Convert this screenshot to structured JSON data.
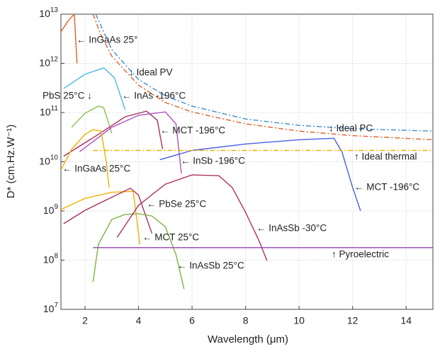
{
  "chart_data": {
    "type": "line",
    "xlabel": "Wavelength (μm)",
    "ylabel": "D* (cm.Hz.W⁻¹)",
    "xlim": [
      1.1,
      15
    ],
    "xticks": [
      2,
      4,
      6,
      8,
      10,
      12,
      14
    ],
    "ylim": [
      10000000.0,
      10000000000000.0
    ],
    "yscale": "log",
    "yticks": [
      {
        "value": 10000000.0,
        "label": "10^7"
      },
      {
        "value": 100000000.0,
        "label": "10^8"
      },
      {
        "value": 1000000000.0,
        "label": "10^9"
      },
      {
        "value": 10000000000.0,
        "label": "10^10"
      },
      {
        "value": 100000000000.0,
        "label": "10^11"
      },
      {
        "value": 1000000000000.0,
        "label": "10^12"
      },
      {
        "value": 10000000000000.0,
        "label": "10^13"
      }
    ],
    "grid": true,
    "series": [
      {
        "color": "#e0602a",
        "style": "solid",
        "x": [
          1.1,
          1.4,
          1.6,
          1.7
        ],
        "values": [
          4400000000000.0,
          7700000000000.0,
          10000000000000.0,
          1000000000000.0
        ]
      },
      {
        "color": "#4db8e8",
        "style": "solid",
        "x": [
          1.2,
          2,
          2.7,
          3.1,
          3.5
        ],
        "values": [
          310000000000.0,
          600000000000.0,
          810000000000.0,
          510000000000.0,
          114000000000.0
        ]
      },
      {
        "color": "#8bc34a",
        "style": "solid",
        "x": [
          1.5,
          2,
          2.5,
          2.7,
          3
        ],
        "values": [
          50000000000.0,
          97000000000.0,
          135000000000.0,
          126000000000.0,
          38000000000.0
        ]
      },
      {
        "color": "#a8305e",
        "style": "solid",
        "x": [
          1.2,
          2.5,
          3.5,
          4.3,
          4.7,
          4.9
        ],
        "values": [
          13000000000.0,
          36000000000.0,
          82000000000.0,
          107000000000.0,
          70000000000.0,
          18000000000.0
        ]
      },
      {
        "color": "#b050c0",
        "style": "solid",
        "x": [
          1.8,
          3,
          4,
          5,
          5.4,
          5.6
        ],
        "values": [
          16000000000.0,
          50000000000.0,
          88000000000.0,
          103000000000.0,
          59000000000.0,
          5800000000.0
        ]
      },
      {
        "color": "#f0b000",
        "style": "solid",
        "x": [
          1.1,
          1.5,
          2,
          2.3,
          2.6,
          2.8,
          2.9
        ],
        "values": [
          6800000000.0,
          18000000000.0,
          36000000000.0,
          45000000000.0,
          42000000000.0,
          9500000000.0,
          3000000000.0
        ]
      },
      {
        "color": "#f0b000",
        "style": "solid",
        "x": [
          1.1,
          2,
          3,
          3.8,
          3.9,
          4.05
        ],
        "values": [
          1070000000.0,
          1800000000.0,
          2400000000.0,
          2500000000.0,
          940000000.0,
          210000000.0
        ]
      },
      {
        "color": "#a8305e",
        "style": "solid",
        "x": [
          1.2,
          2,
          3,
          3.7,
          4,
          4.5
        ],
        "values": [
          550000000.0,
          1030000000.0,
          1900000000.0,
          2900000000.0,
          2100000000.0,
          350000000.0
        ]
      },
      {
        "color": "#7cb342",
        "style": "solid",
        "x": [
          2.3,
          2.5,
          3,
          3.5,
          4,
          4.5,
          5,
          5.4,
          5.7
        ],
        "values": [
          36000000.0,
          210000000.0,
          670000000.0,
          850000000.0,
          880000000.0,
          790000000.0,
          480000000.0,
          130000000.0,
          26000000.0
        ]
      },
      {
        "color": "#b03060",
        "style": "solid",
        "x": [
          3.2,
          4,
          5,
          6,
          7,
          7.5,
          8,
          8.5,
          8.8
        ],
        "values": [
          290000000.0,
          1300000000.0,
          3500000000.0,
          5400000000.0,
          5200000000.0,
          3000000000.0,
          940000000.0,
          250000000.0,
          98000000.0
        ]
      },
      {
        "color": "#4a5ee0",
        "style": "solid",
        "x": [
          4.8,
          6,
          8,
          10,
          11.3,
          11.6,
          12,
          12.3
        ],
        "values": [
          11000000000.0,
          17000000000.0,
          23000000000.0,
          28000000000.0,
          30000000000.0,
          16000000000.0,
          3000000000.0,
          1000000000.0
        ]
      },
      {
        "color": "#e0602a",
        "style": "dashdot",
        "x": [
          2.3,
          2.6,
          3,
          4,
          5,
          6,
          8,
          10,
          12,
          15
        ],
        "values": [
          10000000000000.0,
          3700000000000.0,
          1400000000000.0,
          360000000000.0,
          160000000000.0,
          103000000000.0,
          59000000000.0,
          42000000000.0,
          34000000000.0,
          28000000000.0
        ]
      },
      {
        "color": "#3c8fd0",
        "style": "dashdot",
        "x": [
          2.4,
          3,
          4,
          5,
          6,
          8,
          10,
          12,
          15
        ],
        "values": [
          10000000000000.0,
          1900000000000.0,
          470000000000.0,
          220000000000.0,
          135000000000.0,
          74000000000.0,
          55000000000.0,
          47000000000.0,
          42000000000.0
        ]
      },
      {
        "color": "#f0b000",
        "style": "dashdot",
        "x": [
          2.3,
          15
        ],
        "values": [
          17000000000.0,
          17000000000.0
        ]
      },
      {
        "color": "#9040b0",
        "style": "solid",
        "x": [
          2.3,
          15
        ],
        "values": [
          180000000.0,
          180000000.0
        ]
      }
    ],
    "annotations": [
      "← InGaAs 25°",
      "↓ Ideal PV",
      "PbS 25°C ↓",
      "← InAs -196°C",
      "← MCT -196°C",
      "↓ Ideal PC",
      "← InSb -196°C",
      "↑ Ideal thermal",
      "← InGaAs 25°C",
      "← MCT -196°C",
      "← PbSe 25°C",
      "← InAsSb -30°C",
      "← MCT 25°C",
      "↑ Pyroelectric",
      "← InAsSb 25°C"
    ]
  }
}
